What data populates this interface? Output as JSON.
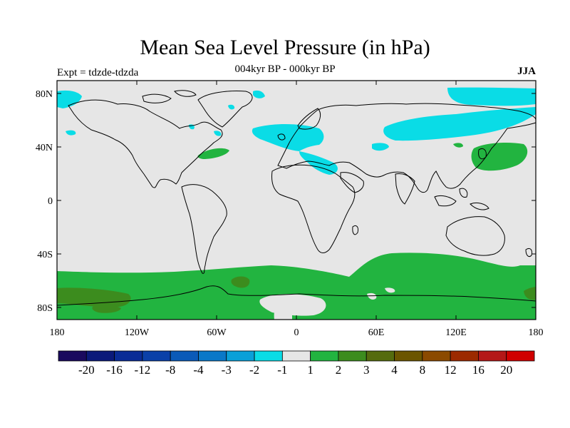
{
  "title": "Mean Sea Level Pressure (in hPa)",
  "subtitle": "004kyr BP - 000kyr BP",
  "left_label": "Expt = tdzde-tdzda",
  "right_label": "JJA",
  "lat_ticks": [
    "80N",
    "40N",
    "0",
    "40S",
    "80S"
  ],
  "lon_ticks": [
    "180",
    "120W",
    "60W",
    "0",
    "60E",
    "120E",
    "180"
  ],
  "colorbar": {
    "colors": [
      "#1a0a5e",
      "#0b1a7a",
      "#0a2c96",
      "#0a40a8",
      "#0a5ab8",
      "#0a78c8",
      "#0aa0d8",
      "#0adce6",
      "#e6e6e6",
      "#22b440",
      "#3c8c1e",
      "#556b0e",
      "#6b5500",
      "#8b4a00",
      "#9c2a00",
      "#b41818",
      "#d00000"
    ],
    "labels": [
      "-20",
      "-16",
      "-12",
      "-8",
      "-4",
      "-3",
      "-2",
      "-1",
      "1",
      "2",
      "3",
      "4",
      "8",
      "12",
      "16",
      "20"
    ]
  },
  "colors": {
    "background": "#e6e6e6",
    "negative_light": "#0adce6",
    "positive_light": "#22b440",
    "positive_mid": "#556b0e",
    "coast": "#000000"
  }
}
